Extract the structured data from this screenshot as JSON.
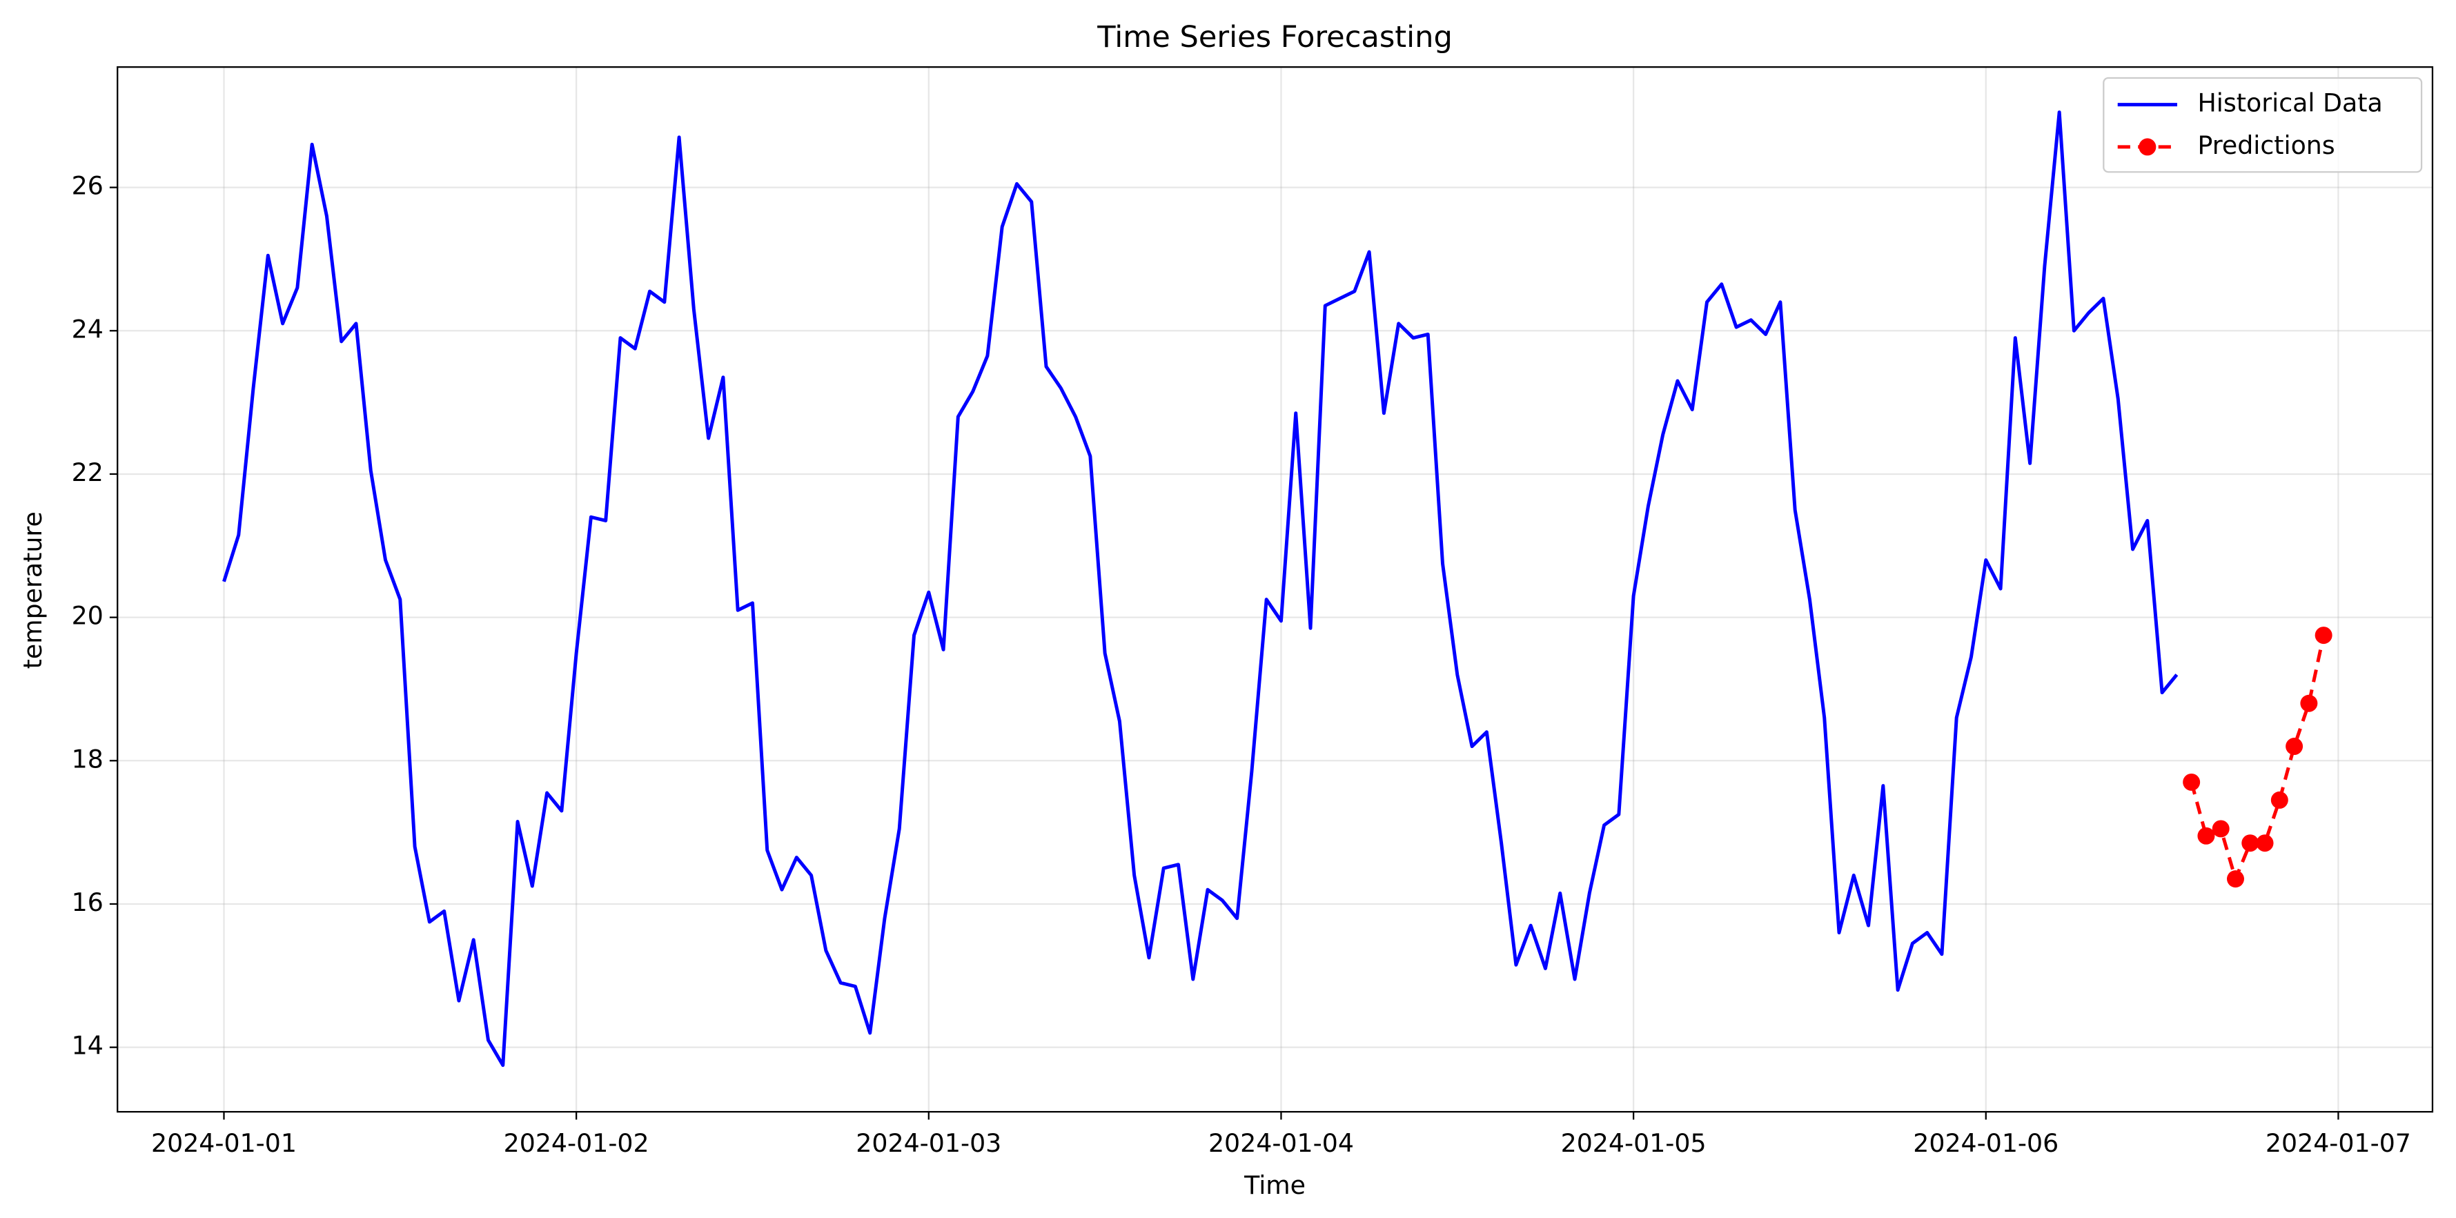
{
  "chart_data": {
    "type": "line",
    "title": "Time Series Forecasting",
    "x_label": "Time",
    "y_label": "temperature",
    "xlim": [
      "2023-12-31T16:45",
      "2024-01-07T06:25"
    ],
    "ylim": [
      13.1,
      27.68
    ],
    "xticks": [
      {
        "value": "2024-01-01T00:00",
        "label": "2024-01-01"
      },
      {
        "value": "2024-01-02T00:00",
        "label": "2024-01-02"
      },
      {
        "value": "2024-01-03T00:00",
        "label": "2024-01-03"
      },
      {
        "value": "2024-01-04T00:00",
        "label": "2024-01-04"
      },
      {
        "value": "2024-01-05T00:00",
        "label": "2024-01-05"
      },
      {
        "value": "2024-01-06T00:00",
        "label": "2024-01-06"
      },
      {
        "value": "2024-01-07T00:00",
        "label": "2024-01-07"
      }
    ],
    "yticks": [
      14,
      16,
      18,
      20,
      22,
      24,
      26
    ],
    "grid": true,
    "legend": "upper right",
    "series": [
      {
        "name": "Historical Data",
        "color": "#0000ff",
        "style": "solid",
        "marker": false,
        "x": [
          "2024-01-01T00:00",
          "2024-01-01T01:00",
          "2024-01-01T02:00",
          "2024-01-01T03:00",
          "2024-01-01T04:00",
          "2024-01-01T05:00",
          "2024-01-01T06:00",
          "2024-01-01T07:00",
          "2024-01-01T08:00",
          "2024-01-01T09:00",
          "2024-01-01T10:00",
          "2024-01-01T11:00",
          "2024-01-01T12:00",
          "2024-01-01T13:00",
          "2024-01-01T14:00",
          "2024-01-01T15:00",
          "2024-01-01T16:00",
          "2024-01-01T17:00",
          "2024-01-01T18:00",
          "2024-01-01T19:00",
          "2024-01-01T20:00",
          "2024-01-01T21:00",
          "2024-01-01T22:00",
          "2024-01-01T23:00",
          "2024-01-02T00:00",
          "2024-01-02T01:00",
          "2024-01-02T02:00",
          "2024-01-02T03:00",
          "2024-01-02T04:00",
          "2024-01-02T05:00",
          "2024-01-02T06:00",
          "2024-01-02T07:00",
          "2024-01-02T08:00",
          "2024-01-02T09:00",
          "2024-01-02T10:00",
          "2024-01-02T11:00",
          "2024-01-02T12:00",
          "2024-01-02T13:00",
          "2024-01-02T14:00",
          "2024-01-02T15:00",
          "2024-01-02T16:00",
          "2024-01-02T17:00",
          "2024-01-02T18:00",
          "2024-01-02T19:00",
          "2024-01-02T20:00",
          "2024-01-02T21:00",
          "2024-01-02T22:00",
          "2024-01-02T23:00",
          "2024-01-03T00:00",
          "2024-01-03T01:00",
          "2024-01-03T02:00",
          "2024-01-03T03:00",
          "2024-01-03T04:00",
          "2024-01-03T05:00",
          "2024-01-03T06:00",
          "2024-01-03T07:00",
          "2024-01-03T08:00",
          "2024-01-03T09:00",
          "2024-01-03T10:00",
          "2024-01-03T11:00",
          "2024-01-03T12:00",
          "2024-01-03T13:00",
          "2024-01-03T14:00",
          "2024-01-03T15:00",
          "2024-01-03T16:00",
          "2024-01-03T17:00",
          "2024-01-03T18:00",
          "2024-01-03T19:00",
          "2024-01-03T20:00",
          "2024-01-03T21:00",
          "2024-01-03T22:00",
          "2024-01-03T23:00",
          "2024-01-04T00:00",
          "2024-01-04T01:00",
          "2024-01-04T02:00",
          "2024-01-04T03:00",
          "2024-01-04T04:00",
          "2024-01-04T05:00",
          "2024-01-04T06:00",
          "2024-01-04T07:00",
          "2024-01-04T08:00",
          "2024-01-04T09:00",
          "2024-01-04T10:00",
          "2024-01-04T11:00",
          "2024-01-04T12:00",
          "2024-01-04T13:00",
          "2024-01-04T14:00",
          "2024-01-04T15:00",
          "2024-01-04T16:00",
          "2024-01-04T17:00",
          "2024-01-04T18:00",
          "2024-01-04T19:00",
          "2024-01-04T20:00",
          "2024-01-04T21:00",
          "2024-01-04T22:00",
          "2024-01-04T23:00",
          "2024-01-05T00:00",
          "2024-01-05T01:00",
          "2024-01-05T02:00",
          "2024-01-05T03:00",
          "2024-01-05T04:00",
          "2024-01-05T05:00",
          "2024-01-05T06:00",
          "2024-01-05T07:00",
          "2024-01-05T08:00",
          "2024-01-05T09:00",
          "2024-01-05T10:00",
          "2024-01-05T11:00",
          "2024-01-05T12:00",
          "2024-01-05T13:00",
          "2024-01-05T14:00",
          "2024-01-05T15:00",
          "2024-01-05T16:00",
          "2024-01-05T17:00",
          "2024-01-05T18:00",
          "2024-01-05T19:00",
          "2024-01-05T20:00",
          "2024-01-05T21:00",
          "2024-01-05T22:00",
          "2024-01-05T23:00",
          "2024-01-06T00:00",
          "2024-01-06T01:00",
          "2024-01-06T02:00",
          "2024-01-06T03:00",
          "2024-01-06T04:00",
          "2024-01-06T05:00",
          "2024-01-06T06:00",
          "2024-01-06T07:00",
          "2024-01-06T08:00",
          "2024-01-06T09:00",
          "2024-01-06T10:00",
          "2024-01-06T11:00",
          "2024-01-06T12:00",
          "2024-01-06T13:00"
        ],
        "values": [
          20.5,
          21.15,
          23.2,
          25.05,
          24.1,
          24.6,
          26.6,
          25.6,
          23.85,
          24.1,
          22.05,
          20.8,
          20.25,
          16.8,
          15.75,
          15.9,
          14.65,
          15.5,
          14.1,
          13.75,
          17.15,
          16.25,
          17.55,
          17.3,
          19.5,
          21.4,
          21.35,
          23.9,
          23.75,
          24.55,
          24.4,
          26.7,
          24.3,
          22.5,
          23.35,
          20.1,
          20.2,
          16.75,
          16.2,
          16.65,
          16.4,
          15.35,
          14.9,
          14.85,
          14.2,
          15.8,
          17.05,
          19.75,
          20.35,
          19.55,
          22.8,
          23.15,
          23.65,
          25.45,
          26.05,
          25.8,
          23.5,
          23.2,
          22.8,
          22.25,
          19.5,
          18.55,
          16.4,
          15.25,
          16.5,
          16.55,
          14.95,
          16.2,
          16.05,
          15.8,
          17.85,
          20.25,
          19.95,
          22.85,
          19.85,
          24.35,
          24.45,
          24.55,
          25.1,
          22.85,
          24.1,
          23.9,
          23.95,
          20.75,
          19.2,
          18.2,
          18.4,
          16.85,
          15.15,
          15.7,
          15.1,
          16.15,
          14.95,
          16.15,
          17.1,
          17.25,
          20.3,
          21.55,
          22.55,
          23.3,
          22.9,
          24.4,
          24.65,
          24.05,
          24.15,
          23.95,
          24.4,
          21.5,
          20.25,
          18.6,
          15.6,
          16.4,
          15.7,
          17.65,
          14.8,
          15.45,
          15.6,
          15.3,
          18.6,
          19.45,
          20.8,
          20.4,
          23.9,
          22.15,
          24.9,
          27.05,
          24.0,
          24.25,
          24.45,
          23.05,
          20.95,
          21.35,
          18.95,
          19.2
        ]
      },
      {
        "name": "Predictions",
        "color": "#ff0000",
        "style": "dashed",
        "marker": true,
        "x": [
          "2024-01-06T14:00",
          "2024-01-06T15:00",
          "2024-01-06T16:00",
          "2024-01-06T17:00",
          "2024-01-06T18:00",
          "2024-01-06T19:00",
          "2024-01-06T20:00",
          "2024-01-06T21:00",
          "2024-01-06T22:00",
          "2024-01-06T23:00"
        ],
        "values": [
          17.7,
          16.95,
          17.05,
          16.35,
          16.85,
          16.85,
          17.45,
          18.2,
          18.8,
          19.75
        ]
      }
    ]
  }
}
